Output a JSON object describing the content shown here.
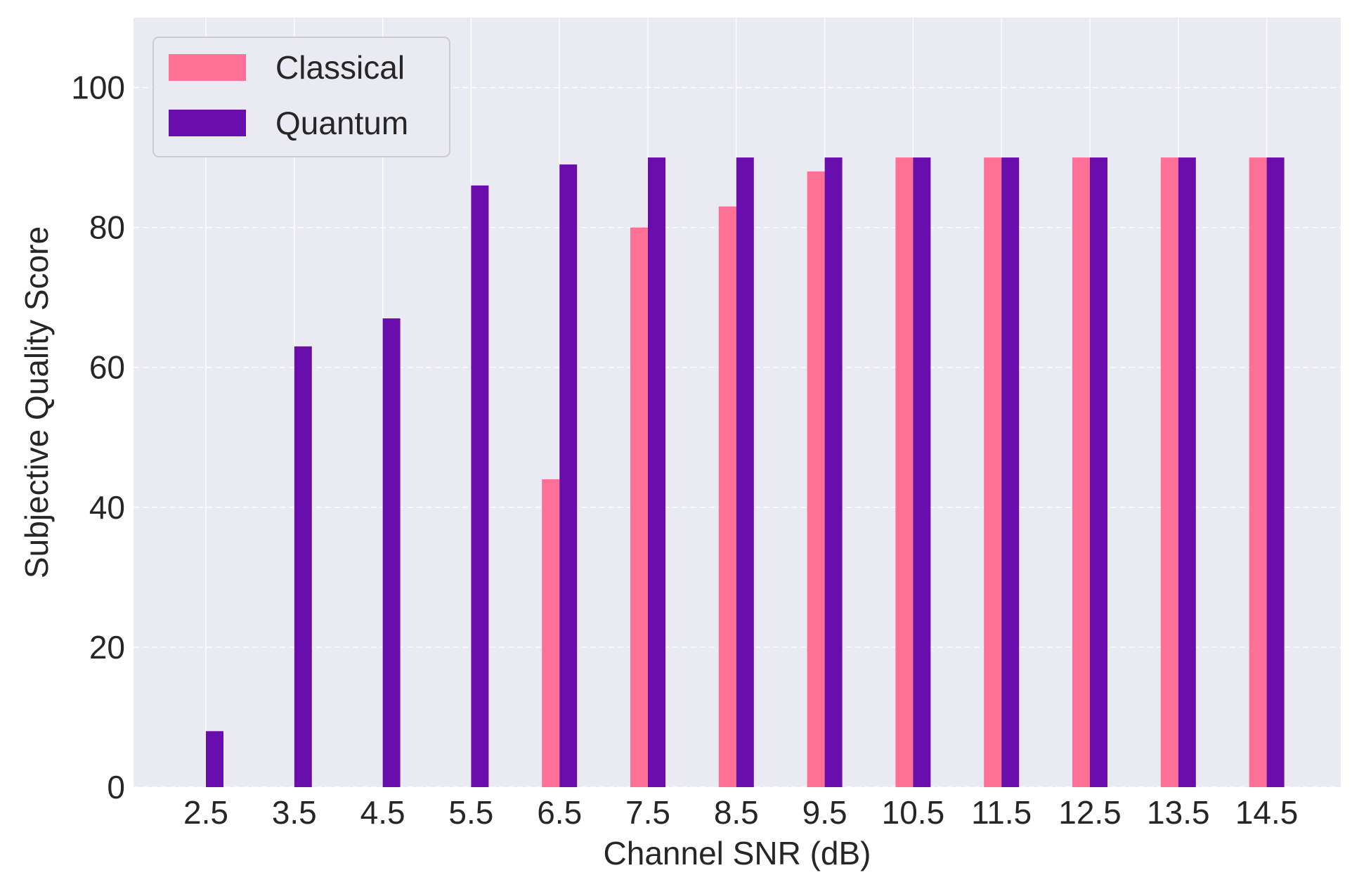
{
  "chart_data": {
    "type": "bar",
    "title": "",
    "xlabel": "Channel SNR (dB)",
    "ylabel": "Subjective Quality Score",
    "categories": [
      "2.5",
      "3.5",
      "4.5",
      "5.5",
      "6.5",
      "7.5",
      "8.5",
      "9.5",
      "10.5",
      "11.5",
      "12.5",
      "13.5",
      "14.5"
    ],
    "series": [
      {
        "name": "Classical",
        "color": "#ff7096",
        "values": [
          0,
          0,
          0,
          0,
          44,
          80,
          83,
          88,
          90,
          90,
          90,
          90,
          90
        ]
      },
      {
        "name": "Quantum",
        "color": "#6a0dad",
        "values": [
          8,
          63,
          67,
          86,
          89,
          90,
          90,
          90,
          90,
          90,
          90,
          90,
          90
        ]
      }
    ],
    "ylim": [
      0,
      110
    ],
    "yticks": [
      "0",
      "20",
      "40",
      "60",
      "80",
      "100"
    ],
    "grid": true,
    "legend_position": "top-left",
    "background_color": "#eaeaf2"
  }
}
